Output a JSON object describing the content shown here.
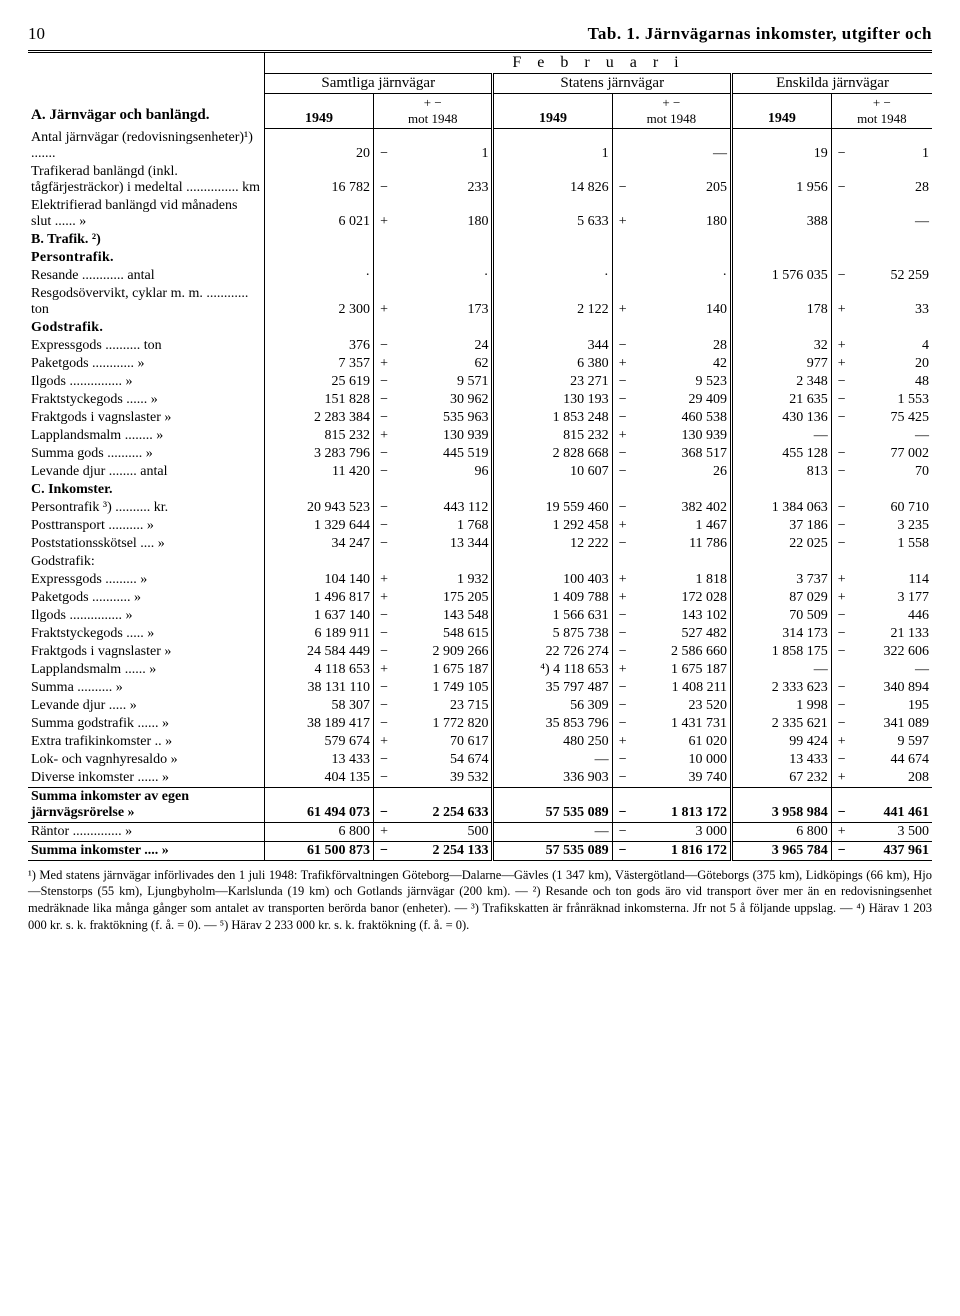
{
  "header": {
    "page_number": "10",
    "tab_title": "Tab. 1.  Järnvägarnas inkomster, utgifter och"
  },
  "month": "F e b r u a r i",
  "group_labels": {
    "samtliga": "Samtliga järnvägar",
    "statens": "Statens järnvägar",
    "enskilda": "Enskilda järnvägar"
  },
  "col_year": "1949",
  "col_delta_sign": "+ −",
  "col_delta_mot": "mot 1948",
  "sections": {
    "A": "A. Järnvägar och banlängd.",
    "B": "B. Trafik. ²)",
    "B1": "Persontrafik.",
    "B2": "Godstrafik.",
    "C": "C. Inkomster."
  },
  "rows": {
    "antal_label": "Antal järnvägar (redovisningsenheter)¹)  .......",
    "antal": {
      "s1": "20",
      "s1s": "−",
      "s1d": "1",
      "s2": "1",
      "s2s": "",
      "s2d": "—",
      "s3": "19",
      "s3s": "−",
      "s3d": "1"
    },
    "traf_label": "Trafikerad banlängd (inkl. tågfärjesträckor) i medeltal ............... km",
    "traf": {
      "s1": "16 782",
      "s1s": "−",
      "s1d": "233",
      "s2": "14 826",
      "s2s": "−",
      "s2d": "205",
      "s3": "1 956",
      "s3s": "−",
      "s3d": "28"
    },
    "elek_label": "Elektrifierad banlängd vid månadens slut ......   »",
    "elek": {
      "s1": "6 021",
      "s1s": "+",
      "s1d": "180",
      "s2": "5 633",
      "s2s": "+",
      "s2d": "180",
      "s3": "388",
      "s3s": "",
      "s3d": "—"
    },
    "resande_label": "Resande ............ antal",
    "resande": {
      "s1": "·",
      "s1s": "",
      "s1d": "·",
      "s2": "·",
      "s2s": "",
      "s2d": "·",
      "s3": "1 576 035",
      "s3s": "−",
      "s3d": "52 259"
    },
    "resgods_label": "Resgodsövervikt, cyklar m. m. ............ ton",
    "resgods": {
      "s1": "2 300",
      "s1s": "+",
      "s1d": "173",
      "s2": "2 122",
      "s2s": "+",
      "s2d": "140",
      "s3": "178",
      "s3s": "+",
      "s3d": "33"
    },
    "express_label": "Expressgods .......... ton",
    "express": {
      "s1": "376",
      "s1s": "−",
      "s1d": "24",
      "s2": "344",
      "s2s": "−",
      "s2d": "28",
      "s3": "32",
      "s3s": "+",
      "s3d": "4"
    },
    "paket_label": "Paketgods ............   »",
    "paket": {
      "s1": "7 357",
      "s1s": "+",
      "s1d": "62",
      "s2": "6 380",
      "s2s": "+",
      "s2d": "42",
      "s3": "977",
      "s3s": "+",
      "s3d": "20"
    },
    "ilgods_label": "Ilgods ...............   »",
    "ilgods": {
      "s1": "25 619",
      "s1s": "−",
      "s1d": "9 571",
      "s2": "23 271",
      "s2s": "−",
      "s2d": "9 523",
      "s3": "2 348",
      "s3s": "−",
      "s3d": "48"
    },
    "fraktstycke_label": "Fraktstyckegods ......   »",
    "fraktstycke": {
      "s1": "151 828",
      "s1s": "−",
      "s1d": "30 962",
      "s2": "130 193",
      "s2s": "−",
      "s2d": "29 409",
      "s3": "21 635",
      "s3s": "−",
      "s3d": "1 553"
    },
    "fraktvagn_label": "Fraktgods i vagnslaster »",
    "fraktvagn": {
      "s1": "2 283 384",
      "s1s": "−",
      "s1d": "535 963",
      "s2": "1 853 248",
      "s2s": "−",
      "s2d": "460 538",
      "s3": "430 136",
      "s3s": "−",
      "s3d": "75 425"
    },
    "lappland_label": "Lapplandsmalm ........   »",
    "lappland": {
      "s1": "815 232",
      "s1s": "+",
      "s1d": "130 939",
      "s2": "815 232",
      "s2s": "+",
      "s2d": "130 939",
      "s3": "—",
      "s3s": "",
      "s3d": "—"
    },
    "summag_label": "Summa gods ..........   »",
    "summag": {
      "s1": "3 283 796",
      "s1s": "−",
      "s1d": "445 519",
      "s2": "2 828 668",
      "s2s": "−",
      "s2d": "368 517",
      "s3": "455 128",
      "s3s": "−",
      "s3d": "77 002"
    },
    "levdj_label": "Levande djur ........ antal",
    "levdj": {
      "s1": "11 420",
      "s1s": "−",
      "s1d": "96",
      "s2": "10 607",
      "s2s": "−",
      "s2d": "26",
      "s3": "813",
      "s3s": "−",
      "s3d": "70"
    },
    "persontr_label": "Persontrafik ³) .......... kr.",
    "persontr": {
      "s1": "20 943 523",
      "s1s": "−",
      "s1d": "443 112",
      "s2": "19 559 460",
      "s2s": "−",
      "s2d": "382 402",
      "s3": "1 384 063",
      "s3s": "−",
      "s3d": "60 710"
    },
    "posttrans_label": "Posttransport ..........   »",
    "posttrans": {
      "s1": "1 329 644",
      "s1s": "−",
      "s1d": "1 768",
      "s2": "1 292 458",
      "s2s": "+",
      "s2d": "1 467",
      "s3": "37 186",
      "s3s": "−",
      "s3d": "3 235"
    },
    "poststation_label": "Poststationsskötsel ....   »",
    "poststation": {
      "s1": "34 247",
      "s1s": "−",
      "s1d": "13 344",
      "s2": "12 222",
      "s2s": "−",
      "s2d": "11 786",
      "s3": "22 025",
      "s3s": "−",
      "s3d": "1 558"
    },
    "godstr_label": "Godstrafik:",
    "c_express_label": "Expressgods .........   »",
    "c_express": {
      "s1": "104 140",
      "s1s": "+",
      "s1d": "1 932",
      "s2": "100 403",
      "s2s": "+",
      "s2d": "1 818",
      "s3": "3 737",
      "s3s": "+",
      "s3d": "114"
    },
    "c_paket_label": "Paketgods ...........   »",
    "c_paket": {
      "s1": "1 496 817",
      "s1s": "+",
      "s1d": "175 205",
      "s2": "1 409 788",
      "s2s": "+",
      "s2d": "172 028",
      "s3": "87 029",
      "s3s": "+",
      "s3d": "3 177"
    },
    "c_ilgods_label": "Ilgods ...............   »",
    "c_ilgods": {
      "s1": "1 637 140",
      "s1s": "−",
      "s1d": "143 548",
      "s2": "1 566 631",
      "s2s": "−",
      "s2d": "143 102",
      "s3": "70 509",
      "s3s": "−",
      "s3d": "446"
    },
    "c_fraktstycke_label": "Fraktstyckegods .....   »",
    "c_fraktstycke": {
      "s1": "6 189 911",
      "s1s": "−",
      "s1d": "548 615",
      "s2": "5 875 738",
      "s2s": "−",
      "s2d": "527 482",
      "s3": "314 173",
      "s3s": "−",
      "s3d": "21 133"
    },
    "c_fraktvagn_label": "Fraktgods i vagnslaster »",
    "c_fraktvagn": {
      "s1": "24 584 449",
      "s1s": "−",
      "s1d": "2 909 266",
      "s2": "22 726 274",
      "s2s": "−",
      "s2d": "2 586 660",
      "s3": "1 858 175",
      "s3s": "−",
      "s3d": "322 606"
    },
    "c_lappland_label": "Lapplandsmalm ......   »",
    "c_lappland": {
      "s1": "4 118 653",
      "s1s": "+",
      "s1d": "1 675 187",
      "s2": "⁴) 4 118 653",
      "s2s": "+",
      "s2d": "1 675 187",
      "s3": "—",
      "s3s": "",
      "s3d": "—"
    },
    "c_summa_label": "Summa ..........   »",
    "c_summa": {
      "s1": "38 131 110",
      "s1s": "−",
      "s1d": "1 749 105",
      "s2": "35 797 487",
      "s2s": "−",
      "s2d": "1 408 211",
      "s3": "2 333 623",
      "s3s": "−",
      "s3d": "340 894"
    },
    "c_levdj_label": "Levande djur .....   »",
    "c_levdj": {
      "s1": "58 307",
      "s1s": "−",
      "s1d": "23 715",
      "s2": "56 309",
      "s2s": "−",
      "s2d": "23 520",
      "s3": "1 998",
      "s3s": "−",
      "s3d": "195"
    },
    "summagods_label": "Summa godstrafik ......   »",
    "summagods": {
      "s1": "38 189 417",
      "s1s": "−",
      "s1d": "1 772 820",
      "s2": "35 853 796",
      "s2s": "−",
      "s2d": "1 431 731",
      "s3": "2 335 621",
      "s3s": "−",
      "s3d": "341 089"
    },
    "extra_label": "Extra trafikinkomster ..   »",
    "extra": {
      "s1": "579 674",
      "s1s": "+",
      "s1d": "70 617",
      "s2": "480 250",
      "s2s": "+",
      "s2d": "61 020",
      "s3": "99 424",
      "s3s": "+",
      "s3d": "9 597"
    },
    "lokvagn_label": "Lok- och vagnhyresaldo »",
    "lokvagn": {
      "s1": "13 433",
      "s1s": "−",
      "s1d": "54 674",
      "s2": "—",
      "s2s": "−",
      "s2d": "10 000",
      "s3": "13 433",
      "s3s": "−",
      "s3d": "44 674"
    },
    "diverse_label": "Diverse inkomster ......   »",
    "diverse": {
      "s1": "404 135",
      "s1s": "−",
      "s1d": "39 532",
      "s2": "336 903",
      "s2s": "−",
      "s2d": "39 740",
      "s3": "67 232",
      "s3s": "+",
      "s3d": "208"
    },
    "summa_egen_label": "Summa inkomster av egen järnvägsrörelse »",
    "summa_egen": {
      "s1": "61 494 073",
      "s1s": "−",
      "s1d": "2 254 633",
      "s2": "57 535 089",
      "s2s": "−",
      "s2d": "1 813 172",
      "s3": "3 958 984",
      "s3s": "−",
      "s3d": "441 461"
    },
    "rantor_label": "Räntor ..............   »",
    "rantor": {
      "s1": "6 800",
      "s1s": "+",
      "s1d": "500",
      "s2": "—",
      "s2s": "−",
      "s2d": "3 000",
      "s3": "6 800",
      "s3s": "+",
      "s3d": "3 500"
    },
    "summa_ink_label": "Summa inkomster ....   »",
    "summa_ink": {
      "s1": "61 500 873",
      "s1s": "−",
      "s1d": "2 254 133",
      "s2": "57 535 089",
      "s2s": "−",
      "s2d": "1 816 172",
      "s3": "3 965 784",
      "s3s": "−",
      "s3d": "437 961"
    }
  },
  "footnotes": "¹) Med statens järnvägar införlivades den 1 juli 1948: Trafikförvaltningen Göteborg—Dalarne—Gävles (1 347 km), Västergötland—Göteborgs (375 km), Lidköpings (66 km), Hjo—Stenstorps (55 km), Ljungbyholm—Karlslunda (19 km) och Gotlands järnvägar (200 km). — ²) Resande och ton gods äro vid transport över mer än en redovisningsenhet medräknade lika många gånger som antalet av transporten berörda banor (enheter). — ³) Trafikskatten är frånräknad inkomsterna. Jfr not 5 å följande uppslag. — ⁴) Härav 1 203 000 kr. s. k. fraktökning (f. å. = 0). — ⁵) Härav 2 233 000 kr. s. k. fraktökning (f. å. = 0)."
}
